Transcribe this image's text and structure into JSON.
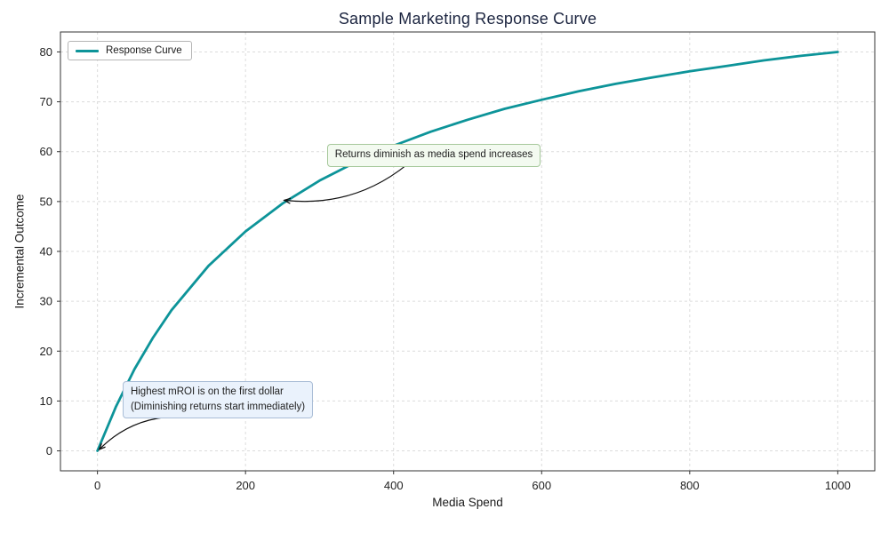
{
  "chart_data": {
    "type": "line",
    "title": "Sample Marketing Response Curve",
    "xlabel": "Media Spend",
    "ylabel": "Incremental Outcome",
    "xlim": [
      -50,
      1050
    ],
    "ylim": [
      -4,
      84
    ],
    "x_ticks": [
      0,
      200,
      400,
      600,
      800,
      1000
    ],
    "y_ticks": [
      0,
      10,
      20,
      30,
      40,
      50,
      60,
      70,
      80
    ],
    "grid": true,
    "grid_color": "#dcdcdc",
    "spine_color": "#333333",
    "legend": {
      "position": "upper-left",
      "entries": [
        {
          "label": "Response Curve",
          "color": "#0d9499"
        }
      ]
    },
    "series": [
      {
        "name": "Response Curve",
        "color": "#0d9499",
        "x": [
          0,
          25,
          50,
          75,
          100,
          150,
          200,
          250,
          300,
          350,
          400,
          450,
          500,
          550,
          600,
          650,
          700,
          750,
          800,
          850,
          900,
          950,
          1000
        ],
        "y": [
          0,
          8.9,
          16.4,
          22.7,
          28.2,
          37.1,
          44.0,
          49.6,
          54.2,
          58.0,
          61.2,
          64.0,
          66.4,
          68.6,
          70.4,
          72.1,
          73.6,
          74.9,
          76.1,
          77.2,
          78.3,
          79.2,
          80.0
        ]
      }
    ],
    "annotations": [
      {
        "text": "Returns diminish as media spend increases",
        "target_xy": [
          250,
          50
        ],
        "box_xy": [
          310,
          61.5
        ],
        "fill": "#f3faf0",
        "border": "#a6c89b"
      },
      {
        "text": "Highest mROI is on the first dollar\n(Diminishing returns start immediately)",
        "target_xy": [
          0,
          0
        ],
        "box_xy": [
          34,
          14
        ],
        "fill": "#eaf2fc",
        "border": "#a9bdd6"
      }
    ]
  }
}
